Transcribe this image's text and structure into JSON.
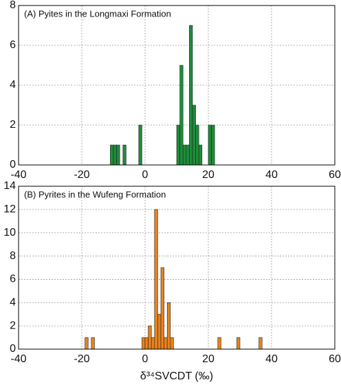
{
  "chart_data": [
    {
      "type": "histogram",
      "title": "(A) Pyites in the Longmaxi Formation",
      "bins": [
        -11,
        -10,
        -9,
        -8,
        -7,
        -6,
        -5,
        -4,
        -3,
        -2,
        -1,
        0,
        1,
        2,
        3,
        4,
        5,
        6,
        7,
        8,
        9,
        10,
        11,
        12,
        13,
        14,
        15,
        16,
        17,
        18,
        19,
        20,
        21,
        22
      ],
      "counts": [
        1,
        1,
        1,
        0,
        1,
        0,
        0,
        0,
        0,
        2,
        0,
        0,
        0,
        0,
        0,
        0,
        0,
        0,
        0,
        0,
        0,
        2,
        5,
        1,
        1,
        7,
        3,
        2,
        1,
        0,
        0,
        2,
        2
      ],
      "color": "#1e8c3a",
      "xlim": [
        -40,
        60
      ],
      "xticks": [
        -40,
        -20,
        0,
        20,
        40,
        60
      ],
      "ylim": [
        0,
        8
      ],
      "yticks": [
        0,
        2,
        4,
        6,
        8
      ],
      "grid": true
    },
    {
      "type": "histogram",
      "title": "(B) Pyrites in the Wufeng Formation",
      "bins": [
        -20,
        -19,
        -18,
        -17,
        -16,
        -15,
        -14,
        -13,
        -12,
        -11,
        -10,
        -9,
        -8,
        -7,
        -6,
        -5,
        -4,
        -3,
        -2,
        -1,
        0,
        1,
        2,
        3,
        4,
        5,
        6,
        7,
        8,
        9,
        10,
        11,
        12,
        13,
        14,
        15,
        16,
        17,
        18,
        19,
        20,
        21,
        22,
        23,
        24,
        25,
        26,
        27,
        28,
        29,
        30,
        31,
        32,
        33,
        34,
        35,
        36,
        37
      ],
      "counts": [
        0,
        1,
        0,
        1,
        0,
        0,
        0,
        0,
        0,
        0,
        0,
        0,
        0,
        0,
        0,
        0,
        0,
        0,
        0,
        1,
        1,
        2,
        1,
        12,
        3,
        7,
        1,
        4,
        1,
        0,
        0,
        0,
        0,
        0,
        0,
        0,
        0,
        0,
        0,
        0,
        0,
        0,
        0,
        1,
        0,
        0,
        0,
        0,
        0,
        1,
        0,
        0,
        0,
        0,
        0,
        0,
        1
      ],
      "color": "#e8821e",
      "xlim": [
        -40,
        60
      ],
      "xticks": [
        -40,
        -20,
        0,
        20,
        40,
        60
      ],
      "ylim": [
        0,
        14
      ],
      "yticks": [
        0,
        2,
        4,
        6,
        8,
        10,
        12,
        14
      ],
      "grid": true,
      "xlabel": "δ³⁴SVCDT (‰)"
    }
  ]
}
